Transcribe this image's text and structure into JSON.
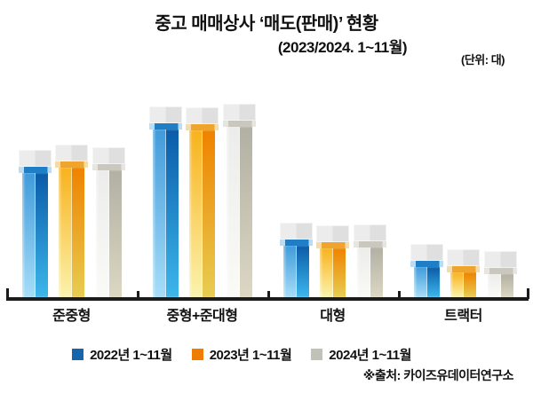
{
  "title": "중고 매매상사 ‘매도(판매)’ 현황",
  "subtitle": "(2023/2024. 1~11월)",
  "unit_label": "(단위: 대)",
  "source": "※출처: 카이즈유데이터연구소",
  "legend": [
    {
      "label": "2022년 1~11월",
      "color": "#1565ae"
    },
    {
      "label": "2023년 1~11월",
      "color": "#ee7d00"
    },
    {
      "label": "2024년 1~11월",
      "color": "#c1c0b9"
    }
  ],
  "chart_data": {
    "type": "bar",
    "title": "중고 매매상사 ‘매도(판매)’ 현황",
    "subtitle": "(2023/2024. 1~11월)",
    "unit_label": "(단위: 대)",
    "categories": [
      "준중형",
      "중형+준대형",
      "대형",
      "트랙터"
    ],
    "category_keys": [
      "semi-mid",
      "mid-plus-semi-large",
      "large",
      "tractor"
    ],
    "series": [
      {
        "name": "2022년 1~11월",
        "key": "2022",
        "values": [
          140,
          189,
          58,
          34
        ],
        "colors": {
          "legend": "#1565ae",
          "left_top": "#409bdb",
          "left_bottom": "#a6ddf8",
          "right_top": "#0b5ba8",
          "right_bottom": "#3cb7eb",
          "stripe": "#1e7fc6",
          "stripe_tint": "#bbdcf2"
        }
      },
      {
        "name": "2023년 1~11월",
        "key": "2023",
        "values": [
          146,
          188,
          55,
          28
        ],
        "colors": {
          "legend": "#ee7d00",
          "left_top": "#f8b21d",
          "left_bottom": "#fbf3ad",
          "right_top": "#ef8200",
          "right_bottom": "#e7cd52",
          "stripe": "#efa42e",
          "stripe_tint": "#f3dbac"
        }
      },
      {
        "name": "2024년 1~11월",
        "key": "2024",
        "values": [
          143,
          192,
          56,
          26
        ],
        "colors": {
          "legend": "#c1c0b9",
          "left_top": "#ececea",
          "left_bottom": "#fafaf7",
          "right_top": "#b2b0a3",
          "right_bottom": "#dbd7c3",
          "stripe": "#c9c7be",
          "stripe_tint": "#e6e5e0"
        }
      }
    ],
    "value_note": "No numeric axis is shown in the chart; values are relative bar heights in screen pixels (baseline = 0).",
    "ylim": [
      0,
      200
    ],
    "grid": false,
    "legend_position": "bottom",
    "cap_style": "translucent gray cap block above each bar with colored stripe at junction"
  }
}
